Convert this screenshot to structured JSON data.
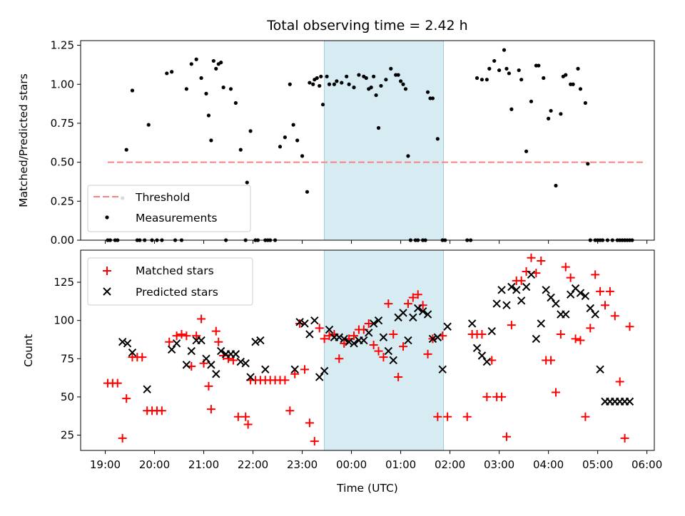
{
  "chart_data": {
    "title": "Total observing time = 2.42 h",
    "xlabel": "Time (UTC)",
    "x_tick_labels": [
      "19:00",
      "20:00",
      "21:00",
      "22:00",
      "23:00",
      "00:00",
      "01:00",
      "02:00",
      "03:00",
      "04:00",
      "05:00",
      "06:00"
    ],
    "x_range_hours_since_19utc": [
      -0.5,
      11.15
    ],
    "shaded_interval_hours_since_19utc": [
      4.45,
      6.87
    ],
    "colors": {
      "threshold": "#ff7f7f",
      "measurements": "#000000",
      "matched": "#ff0000",
      "predicted": "#000000",
      "shade": "#add8e6"
    },
    "panels": [
      {
        "type": "scatter",
        "ylabel": "Matched/Predicted stars",
        "ylim": [
          0,
          1.28
        ],
        "y_ticks": [
          "0.00",
          "0.25",
          "0.50",
          "0.75",
          "1.00",
          "1.25"
        ],
        "legend_position": "lower-left",
        "threshold": {
          "name": "Threshold",
          "y": 0.5,
          "x_range": [
            0.05,
            10.98
          ]
        },
        "series": [
          {
            "name": "Measurements",
            "marker": "dot",
            "x": [
              0.05,
              0.1,
              0.2,
              0.25,
              0.35,
              0.43,
              0.55,
              0.65,
              0.7,
              0.8,
              0.88,
              0.95,
              1.05,
              1.15,
              1.25,
              1.35,
              1.42,
              1.55,
              1.65,
              1.75,
              1.85,
              1.95,
              2.05,
              2.1,
              2.15,
              2.2,
              2.25,
              2.3,
              2.35,
              2.4,
              2.45,
              2.55,
              2.65,
              2.75,
              2.85,
              2.88,
              2.95,
              3.05,
              3.1,
              3.25,
              3.3,
              3.35,
              3.45,
              3.55,
              3.65,
              3.75,
              3.82,
              3.9,
              4.0,
              4.1,
              4.15,
              4.22,
              4.25,
              4.3,
              4.35,
              4.38,
              4.42,
              4.5,
              4.55,
              4.65,
              4.7,
              4.8,
              4.9,
              4.95,
              5.05,
              5.15,
              5.25,
              5.3,
              5.35,
              5.4,
              5.45,
              5.5,
              5.55,
              5.6,
              5.7,
              5.8,
              5.9,
              5.95,
              6.0,
              6.05,
              6.1,
              6.15,
              6.2,
              6.3,
              6.35,
              6.45,
              6.5,
              6.55,
              6.6,
              6.65,
              6.75,
              6.85,
              6.9,
              7.35,
              7.42,
              7.55,
              7.65,
              7.75,
              7.8,
              7.9,
              8.0,
              8.1,
              8.15,
              8.2,
              8.25,
              8.4,
              8.45,
              8.55,
              8.65,
              8.75,
              8.8,
              8.9,
              9.0,
              9.05,
              9.15,
              9.25,
              9.3,
              9.35,
              9.45,
              9.5,
              9.6,
              9.65,
              9.75,
              9.8,
              9.85,
              9.95,
              10.0,
              10.05,
              10.1,
              10.2,
              10.3,
              10.4,
              10.45,
              10.5,
              10.55,
              10.6,
              10.65,
              10.7
            ],
            "y": [
              0,
              0,
              0,
              0,
              0.27,
              0.58,
              0.96,
              0,
              0,
              0,
              0.74,
              0,
              0,
              0,
              1.07,
              1.08,
              0,
              0,
              0.97,
              1.13,
              1.16,
              1.04,
              0.94,
              0.8,
              0.64,
              1.15,
              1.1,
              1.13,
              1.14,
              0.98,
              0,
              0.97,
              0.88,
              0.58,
              0,
              0.37,
              0.7,
              0,
              0,
              0,
              0,
              0,
              0,
              0.6,
              0.66,
              1.0,
              0.74,
              0.64,
              0.54,
              0.31,
              1.01,
              1.0,
              1.03,
              1.04,
              0.99,
              1.05,
              0.87,
              1.05,
              1.0,
              1.0,
              1.02,
              1.01,
              1.05,
              1.0,
              0.98,
              1.06,
              1.05,
              1.04,
              0.97,
              0.98,
              1.05,
              0.93,
              0.72,
              0.99,
              1.03,
              1.1,
              1.06,
              1.06,
              1.02,
              1.0,
              0.97,
              0.54,
              0,
              0,
              0,
              0,
              0,
              0.95,
              0.91,
              0.91,
              0.65,
              0,
              0,
              0,
              0,
              1.04,
              1.03,
              1.03,
              1.1,
              1.15,
              1.09,
              1.22,
              1.1,
              1.07,
              0.84,
              1.09,
              1.03,
              0.57,
              0.89,
              1.12,
              1.12,
              1.04,
              0.78,
              0.83,
              0.35,
              0.81,
              1.05,
              1.06,
              1.0,
              1.0,
              1.1,
              0.97,
              0.88,
              0.49,
              0,
              0,
              0,
              0,
              0,
              0,
              0,
              0,
              0,
              0,
              0,
              0,
              0,
              0
            ]
          }
        ]
      },
      {
        "type": "scatter",
        "ylabel": "Count",
        "ylim": [
          15,
          146
        ],
        "y_ticks": [
          "25",
          "50",
          "75",
          "100",
          "125"
        ],
        "legend_position": "upper-left",
        "series": [
          {
            "name": "Matched stars",
            "marker": "plus",
            "x": [
              0.05,
              0.15,
              0.25,
              0.35,
              0.43,
              0.55,
              0.65,
              0.75,
              0.85,
              0.95,
              1.05,
              1.15,
              1.3,
              1.45,
              1.55,
              1.65,
              1.75,
              1.85,
              1.95,
              2.0,
              2.1,
              2.15,
              2.25,
              2.3,
              2.4,
              2.5,
              2.6,
              2.7,
              2.85,
              2.9,
              2.95,
              3.05,
              3.15,
              3.25,
              3.35,
              3.45,
              3.55,
              3.65,
              3.75,
              3.85,
              3.95,
              4.05,
              4.15,
              4.25,
              4.35,
              4.45,
              4.55,
              4.65,
              4.75,
              4.85,
              4.95,
              5.05,
              5.15,
              5.25,
              5.35,
              5.45,
              5.55,
              5.65,
              5.75,
              5.85,
              5.95,
              6.05,
              6.15,
              6.25,
              6.35,
              6.45,
              6.55,
              6.65,
              6.75,
              6.85,
              6.95,
              7.35,
              7.45,
              7.55,
              7.65,
              7.75,
              7.85,
              7.95,
              8.05,
              8.15,
              8.25,
              8.35,
              8.45,
              8.55,
              8.65,
              8.75,
              8.85,
              8.95,
              9.05,
              9.15,
              9.25,
              9.35,
              9.45,
              9.55,
              9.65,
              9.75,
              9.85,
              9.95,
              10.05,
              10.15,
              10.25,
              10.35,
              10.45,
              10.55,
              10.65
            ],
            "y": [
              59,
              59,
              59,
              23,
              49,
              76,
              76,
              76,
              41,
              41,
              41,
              41,
              86,
              90,
              91,
              90,
              70,
              90,
              101,
              72,
              57,
              42,
              93,
              86,
              77,
              75,
              74,
              37,
              37,
              32,
              61,
              61,
              61,
              61,
              61,
              61,
              61,
              61,
              41,
              65,
              98,
              68,
              33,
              21,
              95,
              88,
              90,
              91,
              75,
              85,
              88,
              90,
              94,
              94,
              98,
              84,
              80,
              76,
              111,
              91,
              63,
              83,
              111,
              115,
              117,
              110,
              78,
              88,
              37,
              90,
              37,
              37,
              91,
              91,
              91,
              50,
              74,
              50,
              50,
              24,
              97,
              126,
              126,
              132,
              141,
              131,
              139,
              74,
              74,
              53,
              91,
              135,
              128,
              88,
              87,
              37,
              95,
              130,
              119,
              110,
              119,
              103,
              60,
              23,
              96
            ],
            "note": "values read approximately from chart"
          },
          {
            "name": "Predicted stars",
            "marker": "cross",
            "x": [
              0.35,
              0.45,
              0.55,
              0.85,
              1.35,
              1.45,
              1.65,
              1.75,
              1.85,
              1.95,
              2.05,
              2.15,
              2.25,
              2.35,
              2.45,
              2.55,
              2.65,
              2.75,
              2.85,
              2.95,
              3.05,
              3.15,
              3.25,
              3.85,
              3.95,
              4.05,
              4.15,
              4.25,
              4.35,
              4.45,
              4.55,
              4.65,
              4.75,
              4.85,
              4.95,
              5.05,
              5.15,
              5.25,
              5.35,
              5.45,
              5.55,
              5.65,
              5.75,
              5.85,
              5.95,
              6.05,
              6.15,
              6.25,
              6.35,
              6.45,
              6.55,
              6.65,
              6.75,
              6.85,
              6.95,
              7.45,
              7.55,
              7.65,
              7.75,
              7.85,
              7.95,
              8.05,
              8.15,
              8.25,
              8.35,
              8.45,
              8.55,
              8.65,
              8.75,
              8.85,
              8.95,
              9.05,
              9.15,
              9.25,
              9.35,
              9.45,
              9.55,
              9.65,
              9.75,
              9.85,
              9.95,
              10.05,
              10.15,
              10.25,
              10.35,
              10.45,
              10.55,
              10.65
            ],
            "y": [
              86,
              85,
              79,
              55,
              81,
              85,
              71,
              80,
              87,
              87,
              75,
              71,
              65,
              80,
              78,
              78,
              78,
              73,
              72,
              63,
              86,
              87,
              68,
              68,
              99,
              98,
              91,
              100,
              63,
              67,
              94,
              89,
              89,
              88,
              86,
              85,
              87,
              87,
              92,
              98,
              100,
              89,
              80,
              74,
              102,
              105,
              87,
              102,
              108,
              106,
              104,
              88,
              89,
              68,
              96,
              98,
              82,
              77,
              73,
              93,
              111,
              120,
              110,
              122,
              120,
              113,
              122,
              130,
              88,
              98,
              120,
              115,
              111,
              104,
              104,
              117,
              121,
              118,
              116,
              108,
              104,
              68,
              47,
              47,
              47,
              47,
              47,
              47
            ],
            "note": "values read approximately from chart"
          }
        ]
      }
    ]
  }
}
